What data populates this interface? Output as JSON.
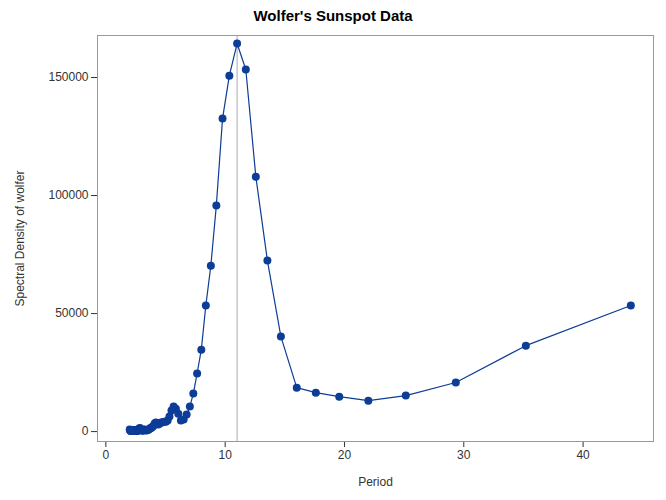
{
  "chart_data": {
    "type": "line",
    "title": "Wolfer's Sunspot Data",
    "x_label": "Period",
    "y_label": "Spectral Density of wolfer",
    "x": [
      44,
      35.2,
      29.33,
      25.14,
      22,
      19.56,
      17.6,
      16,
      14.67,
      13.54,
      12.57,
      11.73,
      11,
      10.35,
      9.78,
      9.26,
      8.8,
      8.38,
      8,
      7.65,
      7.33,
      7.04,
      6.77,
      6.52,
      6.29,
      6.07,
      5.87,
      5.68,
      5.5,
      5.33,
      5.18,
      5.03,
      4.89,
      4.76,
      4.63,
      4.51,
      4.4,
      4.29,
      4.19,
      4.09,
      4,
      3.91,
      3.83,
      3.74,
      3.67,
      3.59,
      3.52,
      3.45,
      3.38,
      3.32,
      3.26,
      3.2,
      3.14,
      3.09,
      3.03,
      2.98,
      2.93,
      2.89,
      2.84,
      2.79,
      2.75,
      2.71,
      2.67,
      2.63,
      2.59,
      2.55,
      2.51,
      2.48,
      2.44,
      2.41,
      2.38,
      2.35,
      2.32,
      2.29,
      2.26,
      2.23,
      2.2,
      2.17,
      2.15,
      2.12,
      2.1,
      2.07,
      2.05,
      2.02,
      2
    ],
    "values": [
      53400,
      36400,
      20800,
      15250,
      13100,
      14800,
      16500,
      18600,
      40250,
      72450,
      108000,
      153400,
      164400,
      150800,
      132600,
      95800,
      70300,
      53400,
      34700,
      24600,
      16100,
      10600,
      7200,
      5100,
      4700,
      7600,
      9700,
      10600,
      8900,
      6400,
      4700,
      4200,
      4200,
      4000,
      3800,
      3400,
      3000,
      3400,
      3800,
      3400,
      2500,
      2000,
      1600,
      1500,
      1200,
      900,
      700,
      600,
      500,
      700,
      900,
      800,
      600,
      400,
      500,
      700,
      1000,
      1300,
      1500,
      1200,
      900,
      600,
      400,
      300,
      300,
      400,
      500,
      600,
      700,
      600,
      500,
      400,
      300,
      300,
      400,
      500,
      600,
      500,
      400,
      300,
      300,
      400,
      500,
      700,
      900
    ],
    "color": "#0d3d96",
    "marker": "circle",
    "line_style": "solid",
    "reference_line": 11,
    "xlim": [
      -0.7,
      45.9
    ],
    "xticks": [
      0,
      10,
      20,
      30,
      40
    ],
    "ylim": [
      -4200,
      167800
    ],
    "yticks": [
      0,
      50000,
      100000,
      150000
    ],
    "grid": false
  }
}
